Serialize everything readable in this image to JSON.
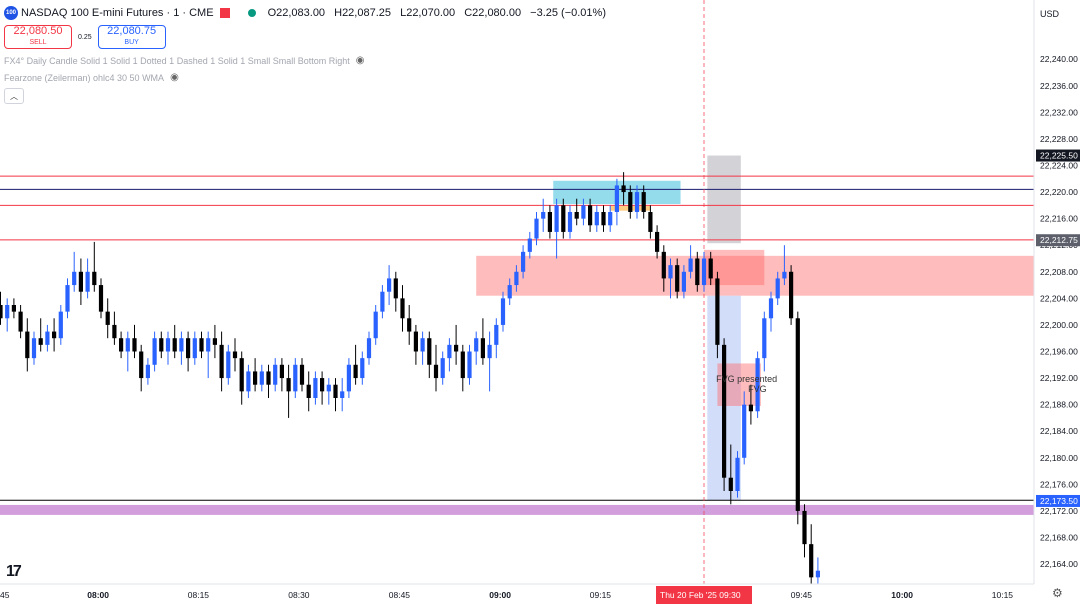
{
  "header": {
    "logo_text": "100",
    "symbol": "NASDAQ 100 E-mini Futures · 1 · CME",
    "ohlc": [
      "O22,083.00",
      "H22,087.25",
      "L22,070.00",
      "C22,080.00",
      "−3.25 (−0.01%)"
    ],
    "currency": "USD"
  },
  "trade": {
    "sell_price": "22,080.50",
    "sell_label": "SELL",
    "spread": "0.25",
    "buy_price": "22,080.75",
    "buy_label": "BUY"
  },
  "indicators": [
    "FX4° Daily Candle Solid 1 Solid 1 Dotted 1 Dashed 1 Solid 1 Small Small Bottom Right",
    "Fearzone (Zeilerman) ohlc4 30 50 WMA"
  ],
  "icons": [
    "logo-icon",
    "flag-icon",
    "status-dot-icon",
    "eye-icon",
    "collapse-icon",
    "gear-icon",
    "tradingview-logo-icon"
  ],
  "colors": {
    "up": "#2962ff",
    "down": "#000000",
    "red_line": "#f23645",
    "cyan_zone": "#4dc3e0",
    "red_zone": "#ff6b6b",
    "purple_band": "#ce93d8",
    "blue_zone": "#9bb4f5",
    "gray_zone": "#9e9ea6"
  },
  "chart_data": {
    "type": "candlestick",
    "y_axis": {
      "ticks": [
        "22,240.00",
        "22,236.00",
        "22,232.00",
        "22,228.00",
        "22,224.00",
        "22,220.00",
        "22,216.00",
        "22,212.00",
        "22,208.00",
        "22,204.00",
        "22,200.00",
        "22,196.00",
        "22,192.00",
        "22,188.00",
        "22,184.00",
        "22,180.00",
        "22,176.00",
        "22,172.00",
        "22,168.00",
        "22,164.00"
      ],
      "range": [
        22161,
        22245
      ],
      "price_labels": [
        {
          "text": "22,225.50",
          "value": 22225.5,
          "style": "dark"
        },
        {
          "text": "22,212.75",
          "value": 22212.75,
          "style": "gray"
        },
        {
          "text": "22,173.50",
          "value": 22173.5,
          "style": "blue"
        }
      ]
    },
    "x_axis": {
      "ticks": [
        {
          "label": "45",
          "minute": 45,
          "bold": false
        },
        {
          "label": "08:00",
          "minute": 60,
          "bold": true
        },
        {
          "label": "08:15",
          "minute": 75,
          "bold": false
        },
        {
          "label": "08:30",
          "minute": 90,
          "bold": false
        },
        {
          "label": "08:45",
          "minute": 105,
          "bold": false
        },
        {
          "label": "09:00",
          "minute": 120,
          "bold": true
        },
        {
          "label": "09:15",
          "minute": 135,
          "bold": false
        },
        {
          "label": "09:45",
          "minute": 165,
          "bold": false
        },
        {
          "label": "10:00",
          "minute": 180,
          "bold": true
        },
        {
          "label": "10:15",
          "minute": 195,
          "bold": false
        }
      ],
      "crosshair": {
        "label": "Thu 20 Feb '25   09:30",
        "minute": 150
      }
    },
    "horizontal_lines": [
      {
        "value": 22222.4,
        "color": "#f23645"
      },
      {
        "value": 22220.4,
        "color": "#1a1a6e"
      },
      {
        "value": 22218.0,
        "color": "#f23645"
      },
      {
        "value": 22212.8,
        "color": "#f23645"
      },
      {
        "value": 22173.6,
        "color": "#000000"
      }
    ],
    "zones": [
      {
        "name": "cyan-zone",
        "start": 127.5,
        "end": 146.5,
        "low": 22218.2,
        "high": 22221.7,
        "color": "#4dc3e0",
        "opacity": 0.6
      },
      {
        "name": "orange-zone",
        "start": 136.0,
        "end": 142.0,
        "low": 22217.2,
        "high": 22217.9,
        "color": "#ffb74d",
        "opacity": 0.7
      },
      {
        "name": "red-zone-main",
        "start": 116.0,
        "end": 200.0,
        "low": 22204.4,
        "high": 22210.4,
        "color": "#ff6b6b",
        "opacity": 0.45
      },
      {
        "name": "red-zone-inner",
        "start": 150.0,
        "end": 159.0,
        "low": 22206.0,
        "high": 22211.3,
        "color": "#ff6b6b",
        "opacity": 0.45
      },
      {
        "name": "gray-zone",
        "start": 150.5,
        "end": 155.5,
        "low": 22212.3,
        "high": 22225.5,
        "color": "#9e9ea6",
        "opacity": 0.45
      },
      {
        "name": "blue-zone",
        "start": 150.5,
        "end": 155.5,
        "low": 22173.6,
        "high": 22204.4,
        "color": "#9bb4f5",
        "opacity": 0.45
      },
      {
        "name": "fvg-zone",
        "start": 152.0,
        "end": 158.5,
        "low": 22187.8,
        "high": 22194.2,
        "color": "#ff6b6b",
        "opacity": 0.45
      },
      {
        "name": "purple-band",
        "start": 30.0,
        "end": 200.0,
        "low": 22171.4,
        "high": 22172.9,
        "color": "#ce93d8",
        "opacity": 0.9
      }
    ],
    "annotation": {
      "line1": "FVG presented",
      "line2": "FVG",
      "minute": 154.5,
      "value": 22192
    },
    "candles": [
      {
        "t": 45,
        "o": 22203,
        "h": 22205,
        "l": 22200,
        "c": 22201
      },
      {
        "t": 46,
        "o": 22201,
        "h": 22204,
        "l": 22199,
        "c": 22203
      },
      {
        "t": 47,
        "o": 22203,
        "h": 22204,
        "l": 22201,
        "c": 22202
      },
      {
        "t": 48,
        "o": 22202,
        "h": 22203,
        "l": 22198,
        "c": 22199
      },
      {
        "t": 49,
        "o": 22199,
        "h": 22201,
        "l": 22193,
        "c": 22195
      },
      {
        "t": 50,
        "o": 22195,
        "h": 22199,
        "l": 22194,
        "c": 22198
      },
      {
        "t": 51,
        "o": 22198,
        "h": 22201,
        "l": 22196,
        "c": 22197
      },
      {
        "t": 52,
        "o": 22197,
        "h": 22200,
        "l": 22196,
        "c": 22199
      },
      {
        "t": 53,
        "o": 22199,
        "h": 22201,
        "l": 22196,
        "c": 22198
      },
      {
        "t": 54,
        "o": 22198,
        "h": 22203,
        "l": 22197,
        "c": 22202
      },
      {
        "t": 55,
        "o": 22202,
        "h": 22207,
        "l": 22201,
        "c": 22206
      },
      {
        "t": 56,
        "o": 22206,
        "h": 22211,
        "l": 22205,
        "c": 22208
      },
      {
        "t": 57,
        "o": 22208,
        "h": 22210,
        "l": 22203,
        "c": 22205
      },
      {
        "t": 58,
        "o": 22205,
        "h": 22210,
        "l": 22204,
        "c": 22208
      },
      {
        "t": 59,
        "o": 22208,
        "h": 22212.5,
        "l": 22205,
        "c": 22206
      },
      {
        "t": 60,
        "o": 22206,
        "h": 22207,
        "l": 22201,
        "c": 22202
      },
      {
        "t": 61,
        "o": 22202,
        "h": 22204,
        "l": 22198,
        "c": 22200
      },
      {
        "t": 62,
        "o": 22200,
        "h": 22202,
        "l": 22197,
        "c": 22198
      },
      {
        "t": 63,
        "o": 22198,
        "h": 22199,
        "l": 22195,
        "c": 22196
      },
      {
        "t": 64,
        "o": 22196,
        "h": 22199,
        "l": 22193,
        "c": 22198
      },
      {
        "t": 65,
        "o": 22198,
        "h": 22200,
        "l": 22195,
        "c": 22196
      },
      {
        "t": 66,
        "o": 22196,
        "h": 22197,
        "l": 22190,
        "c": 22192
      },
      {
        "t": 67,
        "o": 22192,
        "h": 22195,
        "l": 22191,
        "c": 22194
      },
      {
        "t": 68,
        "o": 22194,
        "h": 22199,
        "l": 22193,
        "c": 22198
      },
      {
        "t": 69,
        "o": 22198,
        "h": 22199,
        "l": 22195,
        "c": 22196
      },
      {
        "t": 70,
        "o": 22196,
        "h": 22199,
        "l": 22194,
        "c": 22198
      },
      {
        "t": 71,
        "o": 22198,
        "h": 22200,
        "l": 22195,
        "c": 22196
      },
      {
        "t": 72,
        "o": 22196,
        "h": 22199,
        "l": 22194,
        "c": 22198
      },
      {
        "t": 73,
        "o": 22198,
        "h": 22199,
        "l": 22193,
        "c": 22195
      },
      {
        "t": 74,
        "o": 22195,
        "h": 22199,
        "l": 22194,
        "c": 22198
      },
      {
        "t": 75,
        "o": 22198,
        "h": 22199,
        "l": 22195,
        "c": 22196
      },
      {
        "t": 76,
        "o": 22196,
        "h": 22199,
        "l": 22192,
        "c": 22198
      },
      {
        "t": 77,
        "o": 22198,
        "h": 22200,
        "l": 22195,
        "c": 22197
      },
      {
        "t": 78,
        "o": 22197,
        "h": 22199,
        "l": 22190,
        "c": 22192
      },
      {
        "t": 79,
        "o": 22192,
        "h": 22197,
        "l": 22191,
        "c": 22196
      },
      {
        "t": 80,
        "o": 22196,
        "h": 22198,
        "l": 22193,
        "c": 22195
      },
      {
        "t": 81,
        "o": 22195,
        "h": 22196,
        "l": 22188,
        "c": 22190
      },
      {
        "t": 82,
        "o": 22190,
        "h": 22194,
        "l": 22189,
        "c": 22193
      },
      {
        "t": 83,
        "o": 22193,
        "h": 22195,
        "l": 22190,
        "c": 22191
      },
      {
        "t": 84,
        "o": 22191,
        "h": 22194,
        "l": 22190,
        "c": 22193
      },
      {
        "t": 85,
        "o": 22193,
        "h": 22194,
        "l": 22189,
        "c": 22191
      },
      {
        "t": 86,
        "o": 22191,
        "h": 22195,
        "l": 22190,
        "c": 22194
      },
      {
        "t": 87,
        "o": 22194,
        "h": 22195,
        "l": 22190,
        "c": 22192
      },
      {
        "t": 88,
        "o": 22192,
        "h": 22194,
        "l": 22186,
        "c": 22190
      },
      {
        "t": 89,
        "o": 22190,
        "h": 22195,
        "l": 22189,
        "c": 22194
      },
      {
        "t": 90,
        "o": 22194,
        "h": 22195,
        "l": 22190,
        "c": 22191
      },
      {
        "t": 91,
        "o": 22191,
        "h": 22193,
        "l": 22187,
        "c": 22189
      },
      {
        "t": 92,
        "o": 22189,
        "h": 22193,
        "l": 22188,
        "c": 22192
      },
      {
        "t": 93,
        "o": 22192,
        "h": 22193,
        "l": 22188,
        "c": 22190
      },
      {
        "t": 94,
        "o": 22190,
        "h": 22192,
        "l": 22188,
        "c": 22191
      },
      {
        "t": 95,
        "o": 22191,
        "h": 22192,
        "l": 22187,
        "c": 22189
      },
      {
        "t": 96,
        "o": 22189,
        "h": 22192,
        "l": 22187,
        "c": 22190
      },
      {
        "t": 97,
        "o": 22190,
        "h": 22195,
        "l": 22189,
        "c": 22194
      },
      {
        "t": 98,
        "o": 22194,
        "h": 22197,
        "l": 22191,
        "c": 22192
      },
      {
        "t": 99,
        "o": 22192,
        "h": 22196,
        "l": 22191,
        "c": 22195
      },
      {
        "t": 100,
        "o": 22195,
        "h": 22199,
        "l": 22194,
        "c": 22198
      },
      {
        "t": 101,
        "o": 22198,
        "h": 22203,
        "l": 22197,
        "c": 22202
      },
      {
        "t": 102,
        "o": 22202,
        "h": 22206,
        "l": 22201,
        "c": 22205
      },
      {
        "t": 103,
        "o": 22205,
        "h": 22209,
        "l": 22203,
        "c": 22207
      },
      {
        "t": 104,
        "o": 22207,
        "h": 22208,
        "l": 22202,
        "c": 22204
      },
      {
        "t": 105,
        "o": 22204,
        "h": 22206,
        "l": 22199,
        "c": 22201
      },
      {
        "t": 106,
        "o": 22201,
        "h": 22203,
        "l": 22197,
        "c": 22199
      },
      {
        "t": 107,
        "o": 22199,
        "h": 22200,
        "l": 22194,
        "c": 22196
      },
      {
        "t": 108,
        "o": 22196,
        "h": 22199,
        "l": 22194,
        "c": 22198
      },
      {
        "t": 109,
        "o": 22198,
        "h": 22199,
        "l": 22192,
        "c": 22194
      },
      {
        "t": 110,
        "o": 22194,
        "h": 22197,
        "l": 22190,
        "c": 22192
      },
      {
        "t": 111,
        "o": 22192,
        "h": 22196,
        "l": 22191,
        "c": 22195
      },
      {
        "t": 112,
        "o": 22195,
        "h": 22198,
        "l": 22193,
        "c": 22197
      },
      {
        "t": 113,
        "o": 22197,
        "h": 22200,
        "l": 22194,
        "c": 22196
      },
      {
        "t": 114,
        "o": 22196,
        "h": 22197,
        "l": 22190,
        "c": 22192
      },
      {
        "t": 115,
        "o": 22192,
        "h": 22197,
        "l": 22191,
        "c": 22196
      },
      {
        "t": 116,
        "o": 22196,
        "h": 22199,
        "l": 22194,
        "c": 22198
      },
      {
        "t": 117,
        "o": 22198,
        "h": 22201,
        "l": 22194,
        "c": 22195
      },
      {
        "t": 118,
        "o": 22195,
        "h": 22199,
        "l": 22190,
        "c": 22197
      },
      {
        "t": 119,
        "o": 22197,
        "h": 22201,
        "l": 22195,
        "c": 22200
      },
      {
        "t": 120,
        "o": 22200,
        "h": 22205,
        "l": 22199,
        "c": 22204
      },
      {
        "t": 121,
        "o": 22204,
        "h": 22207,
        "l": 22203,
        "c": 22206
      },
      {
        "t": 122,
        "o": 22206,
        "h": 22209,
        "l": 22205,
        "c": 22208
      },
      {
        "t": 123,
        "o": 22208,
        "h": 22212,
        "l": 22207,
        "c": 22211
      },
      {
        "t": 124,
        "o": 22211,
        "h": 22214,
        "l": 22210,
        "c": 22213
      },
      {
        "t": 125,
        "o": 22213,
        "h": 22217,
        "l": 22212,
        "c": 22216
      },
      {
        "t": 126,
        "o": 22216,
        "h": 22219,
        "l": 22214,
        "c": 22217
      },
      {
        "t": 127,
        "o": 22217,
        "h": 22218,
        "l": 22213,
        "c": 22214
      },
      {
        "t": 128,
        "o": 22214,
        "h": 22219,
        "l": 22210,
        "c": 22218
      },
      {
        "t": 129,
        "o": 22218,
        "h": 22219,
        "l": 22213,
        "c": 22214
      },
      {
        "t": 130,
        "o": 22214,
        "h": 22218,
        "l": 22213,
        "c": 22217
      },
      {
        "t": 131,
        "o": 22217,
        "h": 22219,
        "l": 22215,
        "c": 22216
      },
      {
        "t": 132,
        "o": 22216,
        "h": 22219,
        "l": 22215,
        "c": 22218
      },
      {
        "t": 133,
        "o": 22218,
        "h": 22219,
        "l": 22214,
        "c": 22215
      },
      {
        "t": 134,
        "o": 22215,
        "h": 22218,
        "l": 22214,
        "c": 22217
      },
      {
        "t": 135,
        "o": 22217,
        "h": 22218,
        "l": 22214,
        "c": 22215
      },
      {
        "t": 136,
        "o": 22215,
        "h": 22218,
        "l": 22214,
        "c": 22217
      },
      {
        "t": 137,
        "o": 22217,
        "h": 22222,
        "l": 22215,
        "c": 22221
      },
      {
        "t": 138,
        "o": 22221,
        "h": 22223,
        "l": 22218,
        "c": 22220
      },
      {
        "t": 139,
        "o": 22220,
        "h": 22221,
        "l": 22216,
        "c": 22217
      },
      {
        "t": 140,
        "o": 22217,
        "h": 22221,
        "l": 22216,
        "c": 22220
      },
      {
        "t": 141,
        "o": 22220,
        "h": 22221,
        "l": 22216,
        "c": 22217
      },
      {
        "t": 142,
        "o": 22217,
        "h": 22218,
        "l": 22213,
        "c": 22214
      },
      {
        "t": 143,
        "o": 22214,
        "h": 22215,
        "l": 22210,
        "c": 22211
      },
      {
        "t": 144,
        "o": 22211,
        "h": 22212,
        "l": 22205,
        "c": 22207
      },
      {
        "t": 145,
        "o": 22207,
        "h": 22210,
        "l": 22204,
        "c": 22209
      },
      {
        "t": 146,
        "o": 22209,
        "h": 22210,
        "l": 22204,
        "c": 22205
      },
      {
        "t": 147,
        "o": 22205,
        "h": 22209,
        "l": 22204,
        "c": 22208
      },
      {
        "t": 148,
        "o": 22208,
        "h": 22212,
        "l": 22207,
        "c": 22210
      },
      {
        "t": 149,
        "o": 22210,
        "h": 22211,
        "l": 22205,
        "c": 22206
      },
      {
        "t": 150,
        "o": 22206,
        "h": 22211,
        "l": 22205,
        "c": 22210
      },
      {
        "t": 151,
        "o": 22210,
        "h": 22211,
        "l": 22206,
        "c": 22207
      },
      {
        "t": 152,
        "o": 22207,
        "h": 22208,
        "l": 22195,
        "c": 22197
      },
      {
        "t": 153,
        "o": 22197,
        "h": 22198,
        "l": 22175,
        "c": 22177
      },
      {
        "t": 154,
        "o": 22177,
        "h": 22182,
        "l": 22173,
        "c": 22175
      },
      {
        "t": 155,
        "o": 22175,
        "h": 22181,
        "l": 22174,
        "c": 22180
      },
      {
        "t": 156,
        "o": 22180,
        "h": 22190,
        "l": 22179,
        "c": 22188
      },
      {
        "t": 157,
        "o": 22188,
        "h": 22191,
        "l": 22185,
        "c": 22187
      },
      {
        "t": 158,
        "o": 22187,
        "h": 22196,
        "l": 22186,
        "c": 22195
      },
      {
        "t": 159,
        "o": 22195,
        "h": 22202,
        "l": 22193,
        "c": 22201
      },
      {
        "t": 160,
        "o": 22201,
        "h": 22205,
        "l": 22199,
        "c": 22204
      },
      {
        "t": 161,
        "o": 22204,
        "h": 22208,
        "l": 22203,
        "c": 22207
      },
      {
        "t": 162,
        "o": 22207,
        "h": 22212,
        "l": 22206,
        "c": 22208
      },
      {
        "t": 163,
        "o": 22208,
        "h": 22209,
        "l": 22200,
        "c": 22201
      },
      {
        "t": 164,
        "o": 22201,
        "h": 22202,
        "l": 22170,
        "c": 22172
      },
      {
        "t": 165,
        "o": 22172,
        "h": 22173,
        "l": 22165,
        "c": 22167
      },
      {
        "t": 166,
        "o": 22167,
        "h": 22170,
        "l": 22161,
        "c": 22162
      },
      {
        "t": 167,
        "o": 22162,
        "h": 22165,
        "l": 22161,
        "c": 22163
      }
    ]
  }
}
